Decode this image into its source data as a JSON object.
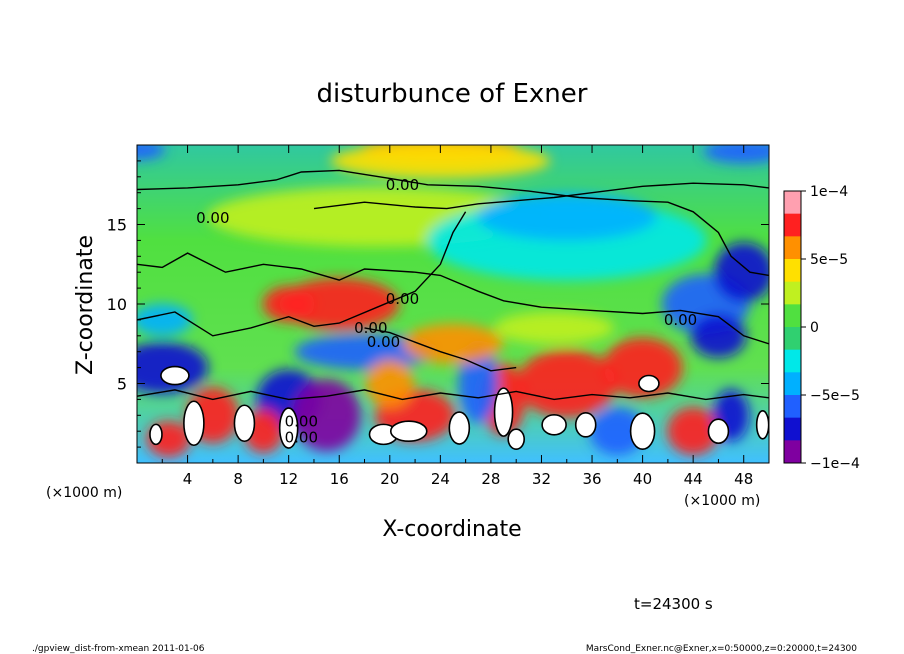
{
  "chart_data": {
    "type": "heatmap",
    "title": "disturbunce of Exner",
    "xlabel": "X-coordinate",
    "ylabel": "Z-coordinate",
    "x_unit": "(×1000 m)",
    "x_unit_right": "(×1000 m)",
    "xlim": [
      0,
      50
    ],
    "ylim": [
      0,
      20
    ],
    "x_ticks": [
      "4",
      "8",
      "12",
      "16",
      "20",
      "24",
      "28",
      "32",
      "36",
      "40",
      "44",
      "48"
    ],
    "y_ticks": [
      "5",
      "10",
      "15"
    ],
    "colorbar": {
      "range": [
        -0.0001,
        0.0001
      ],
      "tick_labels": [
        "1e−4",
        "5e−5",
        "0",
        "−5e−5",
        "−1e−4"
      ]
    },
    "contour_labels": [
      "0.00",
      "0.00",
      "0.00",
      "0.00",
      "0.00",
      "0.00",
      "0.00",
      "0.00"
    ],
    "time_label": "t=24300 s",
    "footer_left": "./gpview_dist-from-xmean  2011-01-06",
    "footer_right": "MarsCond_Exner.nc@Exner,x=0:50000,z=0:20000,t=24300"
  },
  "colors": {
    "scale": [
      "#7f00a0",
      "#1010d0",
      "#2060ff",
      "#00b0ff",
      "#00e8e8",
      "#30d070",
      "#50e040",
      "#c0f020",
      "#ffe000",
      "#ff9000",
      "#ff2020",
      "#ffa0b0"
    ],
    "contour": "#000000"
  }
}
